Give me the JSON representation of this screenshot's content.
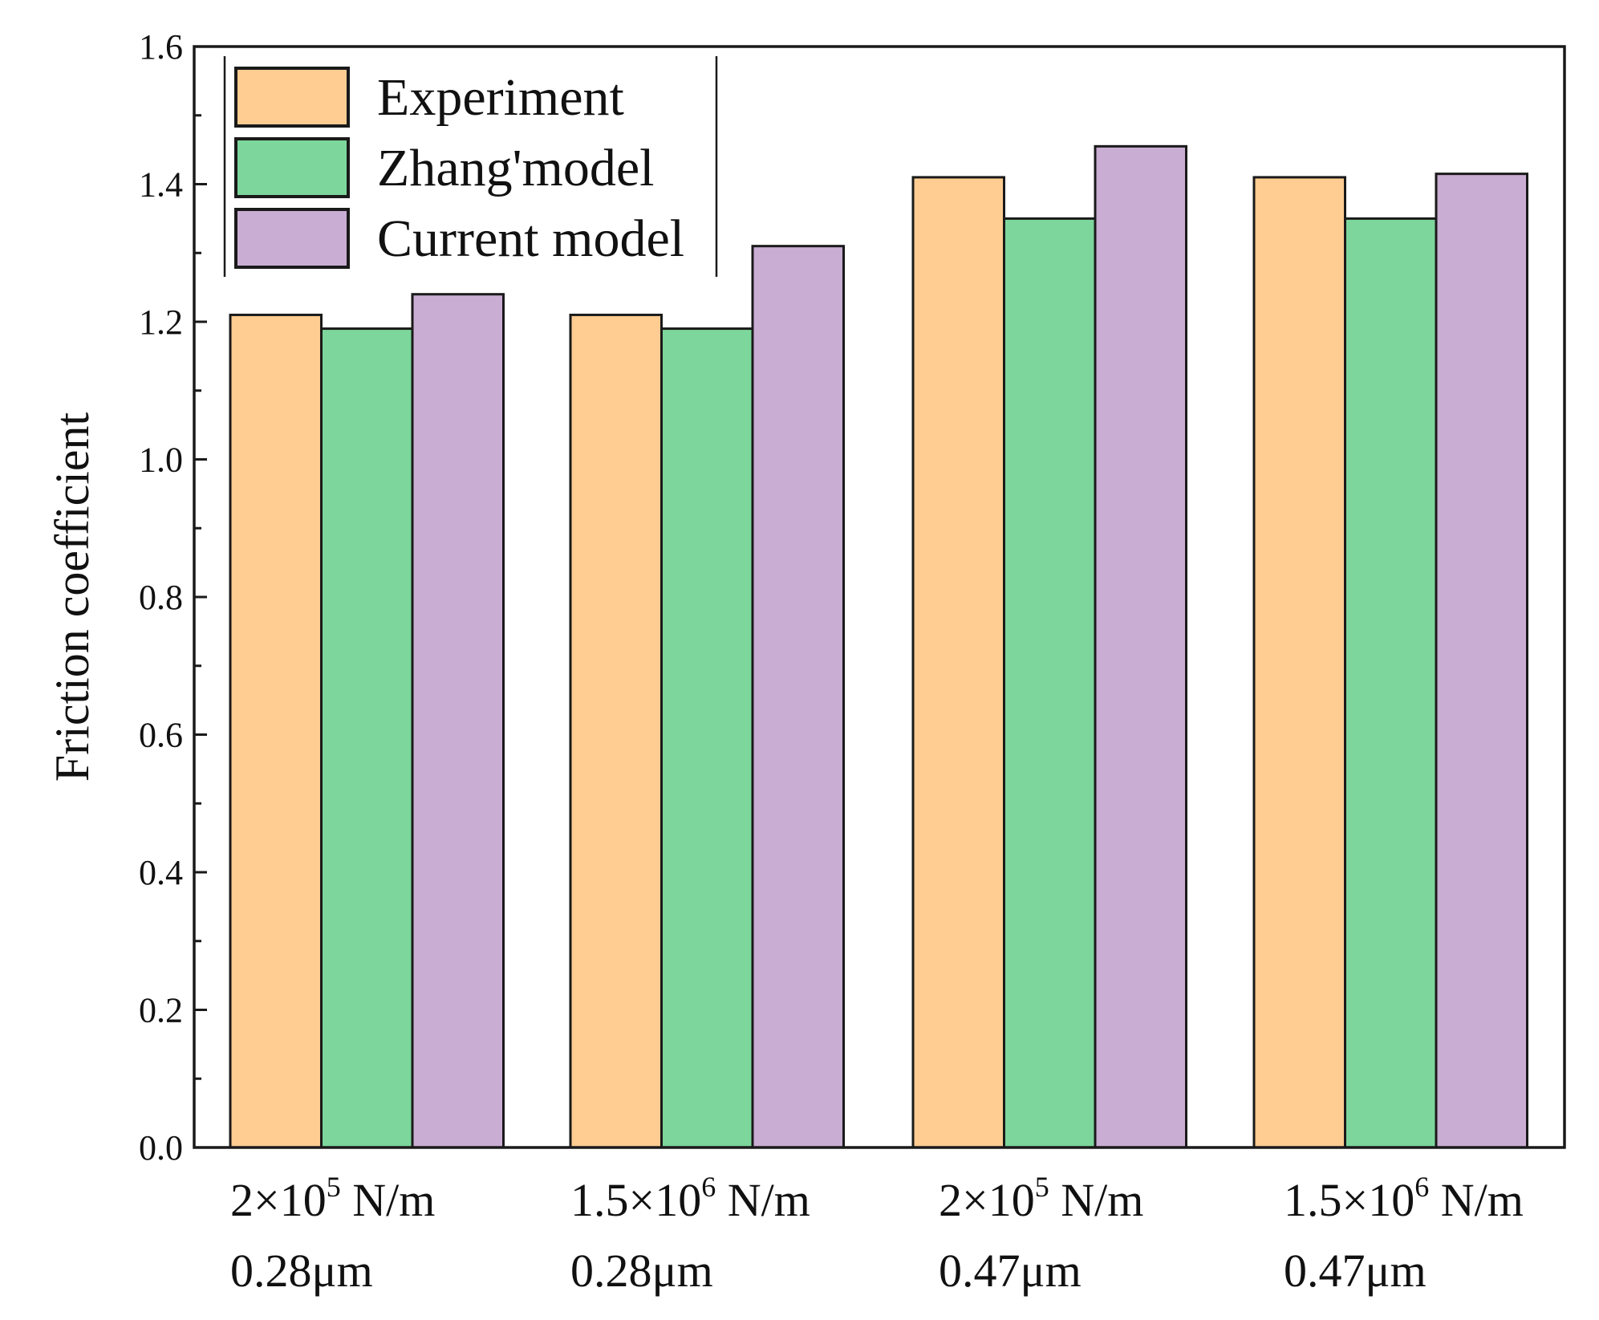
{
  "chart_data": {
    "type": "bar",
    "title": "",
    "xlabel": "",
    "ylabel": "Friction coefficient",
    "ylim": [
      0,
      1.6
    ],
    "yticks": [
      "0.0",
      "0.2",
      "0.4",
      "0.6",
      "0.8",
      "1.0",
      "1.2",
      "1.4",
      "1.6"
    ],
    "grid": false,
    "legend_position": "top-left",
    "categories": [
      {
        "line1_base": "2×10",
        "line1_exp": "5",
        "line1_unit": " N/m",
        "line2": "0.28μm"
      },
      {
        "line1_base": "1.5×10",
        "line1_exp": "6",
        "line1_unit": " N/m",
        "line2": "0.28μm"
      },
      {
        "line1_base": "2×10",
        "line1_exp": "5",
        "line1_unit": " N/m",
        "line2": "0.47μm"
      },
      {
        "line1_base": "1.5×10",
        "line1_exp": "6",
        "line1_unit": " N/m",
        "line2": "0.47μm"
      }
    ],
    "series": [
      {
        "name": "Experiment",
        "color": "#FFCC91",
        "values": [
          1.21,
          1.21,
          1.41,
          1.41
        ]
      },
      {
        "name": "Zhang'model",
        "color": "#7DD69B",
        "values": [
          1.19,
          1.19,
          1.35,
          1.35
        ]
      },
      {
        "name": "Current model",
        "color": "#C9ADD3",
        "values": [
          1.24,
          1.31,
          1.455,
          1.415
        ]
      }
    ]
  }
}
